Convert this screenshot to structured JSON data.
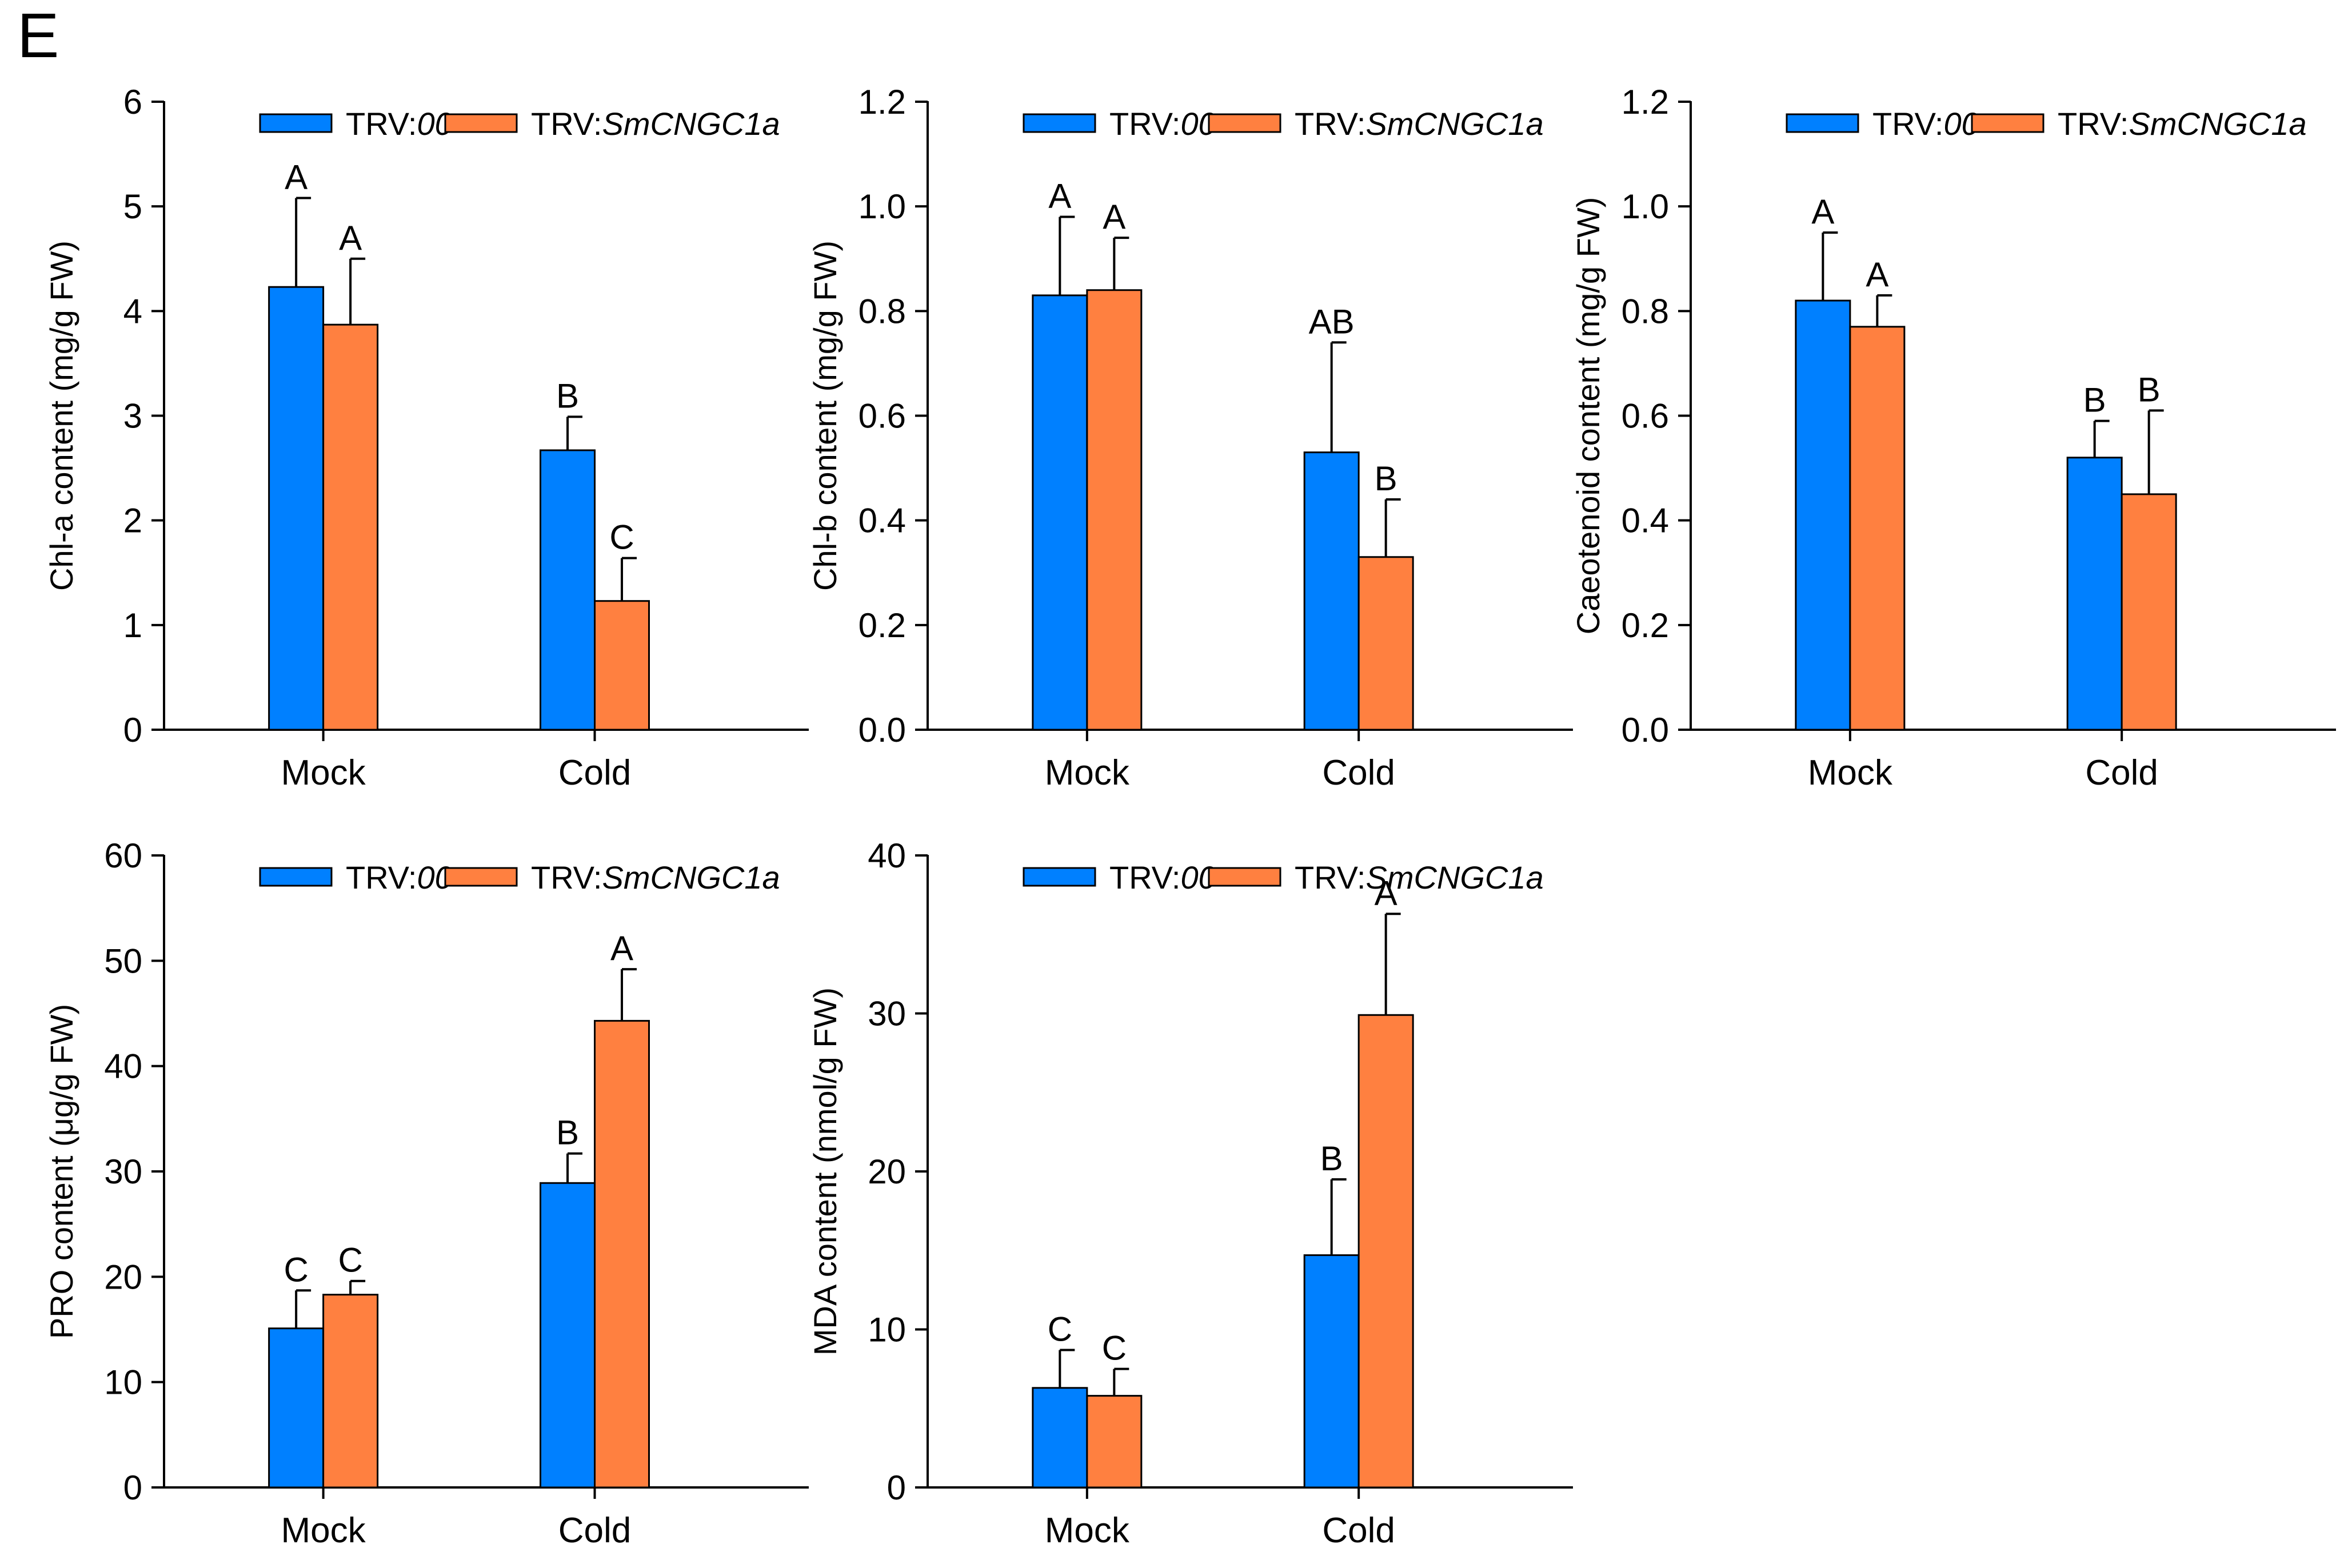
{
  "figure": {
    "panel_label": "E",
    "colors": {
      "series_1": "#0080ff",
      "series_2": "#ff8040",
      "axis": "#000000"
    }
  },
  "chart_data": [
    {
      "type": "bar",
      "ylabel": "Chl-a content (mg/g FW)",
      "categories": [
        "Mock",
        "Cold"
      ],
      "ylim": [
        0,
        6
      ],
      "yticks": [
        0,
        1,
        2,
        3,
        4,
        5,
        6
      ],
      "ytick_labels": [
        "0",
        "1",
        "2",
        "3",
        "4",
        "5",
        "6"
      ],
      "legend": {
        "placement": "top-center"
      },
      "series": [
        {
          "name_prefix": "TRV:",
          "name_suffix": "00",
          "values": [
            4.23,
            2.67
          ],
          "errors": [
            0.85,
            0.32
          ],
          "letters": [
            "A",
            "B"
          ]
        },
        {
          "name_prefix": "TRV:",
          "name_suffix": "SmCNGC1a",
          "values": [
            3.87,
            1.23
          ],
          "errors": [
            0.63,
            0.41
          ],
          "letters": [
            "A",
            "C"
          ]
        }
      ]
    },
    {
      "type": "bar",
      "ylabel": "Chl-b content (mg/g FW)",
      "categories": [
        "Mock",
        "Cold"
      ],
      "ylim": [
        0,
        1.2
      ],
      "yticks": [
        0,
        0.2,
        0.4,
        0.6,
        0.8,
        1.0,
        1.2
      ],
      "ytick_labels": [
        "0.0",
        "0.2",
        "0.4",
        "0.6",
        "0.8",
        "1.0",
        "1.2"
      ],
      "legend": {
        "placement": "top-center"
      },
      "series": [
        {
          "name_prefix": "TRV:",
          "name_suffix": "00",
          "values": [
            0.83,
            0.53
          ],
          "errors": [
            0.15,
            0.21
          ],
          "letters": [
            "A",
            "AB"
          ]
        },
        {
          "name_prefix": "TRV:",
          "name_suffix": "SmCNGC1a",
          "values": [
            0.84,
            0.33
          ],
          "errors": [
            0.1,
            0.11
          ],
          "letters": [
            "A",
            "B"
          ]
        }
      ]
    },
    {
      "type": "bar",
      "ylabel": "Caeotenoid  content (mg/g FW)",
      "categories": [
        "Mock",
        "Cold"
      ],
      "ylim": [
        0,
        1.2
      ],
      "yticks": [
        0,
        0.2,
        0.4,
        0.6,
        0.8,
        1.0,
        1.2
      ],
      "ytick_labels": [
        "0.0",
        "0.2",
        "0.4",
        "0.6",
        "0.8",
        "1.0",
        "1.2"
      ],
      "legend": {
        "placement": "top-center"
      },
      "series": [
        {
          "name_prefix": "TRV:",
          "name_suffix": "00",
          "values": [
            0.82,
            0.52
          ],
          "errors": [
            0.13,
            0.07
          ],
          "letters": [
            "A",
            "B"
          ]
        },
        {
          "name_prefix": "TRV:",
          "name_suffix": "SmCNGC1a",
          "values": [
            0.77,
            0.45
          ],
          "errors": [
            0.06,
            0.16
          ],
          "letters": [
            "A",
            "B"
          ]
        }
      ]
    },
    {
      "type": "bar",
      "ylabel": "PRO content (μg/g FW)",
      "categories": [
        "Mock",
        "Cold"
      ],
      "ylim": [
        0,
        60
      ],
      "yticks": [
        0,
        10,
        20,
        30,
        40,
        50,
        60
      ],
      "ytick_labels": [
        "0",
        "10",
        "20",
        "30",
        "40",
        "50",
        "60"
      ],
      "legend": {
        "placement": "top-center"
      },
      "series": [
        {
          "name_prefix": "TRV:",
          "name_suffix": "00",
          "values": [
            15.1,
            28.9
          ],
          "errors": [
            3.6,
            2.8
          ],
          "letters": [
            "C",
            "B"
          ]
        },
        {
          "name_prefix": "TRV:",
          "name_suffix": "SmCNGC1a",
          "values": [
            18.3,
            44.3
          ],
          "errors": [
            1.3,
            4.9
          ],
          "letters": [
            "C",
            "A"
          ]
        }
      ]
    },
    {
      "type": "bar",
      "ylabel": "MDA content (nmol/g FW)",
      "categories": [
        "Mock",
        "Cold"
      ],
      "ylim": [
        0,
        40
      ],
      "yticks": [
        0,
        10,
        20,
        30,
        40
      ],
      "ytick_labels": [
        "0",
        "10",
        "20",
        "30",
        "40"
      ],
      "legend": {
        "placement": "top-center"
      },
      "series": [
        {
          "name_prefix": "TRV:",
          "name_suffix": "00",
          "values": [
            6.3,
            14.7
          ],
          "errors": [
            2.4,
            4.8
          ],
          "letters": [
            "C",
            "B"
          ]
        },
        {
          "name_prefix": "TRV:",
          "name_suffix": "SmCNGC1a",
          "values": [
            5.8,
            29.9
          ],
          "errors": [
            1.7,
            6.4
          ],
          "letters": [
            "C",
            "A"
          ]
        }
      ]
    }
  ]
}
